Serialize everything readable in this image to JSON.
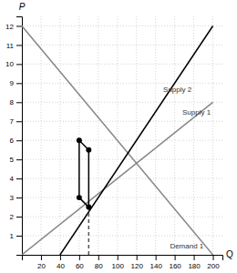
{
  "chart_data": {
    "type": "line",
    "xlabel": "Q",
    "ylabel": "P",
    "xlim": [
      0,
      210
    ],
    "ylim": [
      0,
      12.5
    ],
    "xticks": [
      20,
      40,
      60,
      80,
      100,
      120,
      140,
      160,
      180,
      200
    ],
    "yticks": [
      1,
      2,
      3,
      4,
      5,
      6,
      7,
      8,
      9,
      10,
      11,
      12
    ],
    "grid": true,
    "series": [
      {
        "type": "line",
        "color": "#888888",
        "x": [
          0,
          200
        ],
        "values": [
          12,
          0
        ]
      },
      {
        "type": "line",
        "color": "#888888",
        "x": [
          0,
          200
        ],
        "values": [
          0,
          8
        ]
      },
      {
        "type": "line",
        "color": "#000000",
        "x": [
          40,
          200
        ],
        "values": [
          0,
          12.0
        ]
      },
      {
        "type": "line",
        "color": "#555555",
        "line_style": "dashed",
        "x": [
          70,
          70
        ],
        "values": [
          0,
          2.7
        ]
      },
      {
        "type": "line",
        "color": "#000000",
        "x": [
          60,
          70,
          70,
          60,
          60
        ],
        "values": [
          6.0,
          5.5,
          2.5,
          3.0,
          6.0
        ]
      },
      {
        "type": "scatter",
        "color": "#000000",
        "marker": "circle",
        "x": [
          60,
          70,
          60,
          70
        ],
        "values": [
          6.0,
          5.5,
          3.0,
          2.5
        ]
      }
    ],
    "annotations": [
      {
        "text": "Demand 1",
        "x": 155,
        "y": 0.3
      },
      {
        "text": "Supply 1",
        "x": 168,
        "y": 7.3
      },
      {
        "text": "Supply 2",
        "x": 148,
        "y": 8.5
      }
    ]
  }
}
